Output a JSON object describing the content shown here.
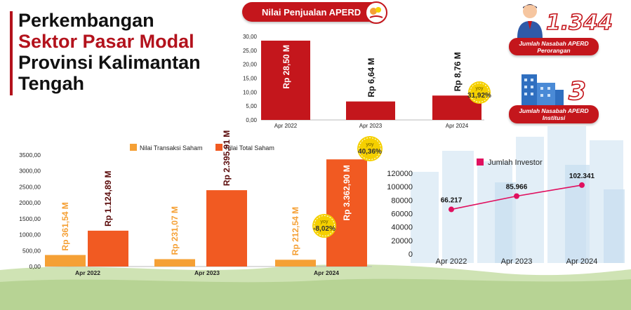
{
  "title": {
    "line1": "Perkembangan",
    "line2": "Sektor Pasar Modal",
    "line3": "Provinsi Kalimantan",
    "line4": "Tengah"
  },
  "aperd_header": "Nilai Penjualan APERD",
  "customers": {
    "individual": {
      "value": "1.344",
      "line1": "Jumlah Nasabah APERD",
      "line2": "Perorangan"
    },
    "institution": {
      "value": "3",
      "line1": "Jumlah Nasabah APERD",
      "line2": "Institusi"
    }
  },
  "colors": {
    "brand_red": "#c4161c",
    "bar_red": "#c4161c",
    "bar_orange_light": "#f5a035",
    "bar_orange": "#f15a22",
    "line_pink": "#e0105f",
    "yoy_badge": "#f5d000"
  },
  "chart_data": [
    {
      "type": "bar",
      "title": "Nilai Penjualan APERD",
      "categories": [
        "Apr 2022",
        "Apr 2023",
        "Apr 2024"
      ],
      "values": [
        28.5,
        6.64,
        8.76
      ],
      "value_labels": [
        "Rp 28,50 M",
        "Rp 6,64 M",
        "Rp 8,76 M"
      ],
      "ylim": [
        0,
        30
      ],
      "yticks": [
        "0,00",
        "5,00",
        "10,00",
        "15,00",
        "20,00",
        "25,00",
        "30,00"
      ],
      "ytick_values": [
        0,
        5,
        10,
        15,
        20,
        25,
        30
      ],
      "annotations": [
        {
          "category": "Apr 2024",
          "label": "yoy",
          "value": "31,92%"
        }
      ],
      "grid": false,
      "legend": "none"
    },
    {
      "type": "bar",
      "categories": [
        "Apr 2022",
        "Apr 2023",
        "Apr 2024"
      ],
      "series": [
        {
          "name": "Nilai Transaksi Saham",
          "values": [
            361.54,
            231.07,
            212.54
          ],
          "value_labels": [
            "Rp 361,54 M",
            "Rp 231,07 M",
            "Rp 212,54 M"
          ]
        },
        {
          "name": "Nilai Total Saham",
          "values": [
            1124.89,
            2395.91,
            3362.9
          ],
          "value_labels": [
            "Rp 1.124,89 M",
            "Rp 2.395,91 M",
            "Rp 3.362,90 M"
          ]
        }
      ],
      "ylim": [
        0,
        3500
      ],
      "yticks": [
        "0,00",
        "500,00",
        "1000,00",
        "1500,00",
        "2000,00",
        "2500,00",
        "3000,00",
        "3500,00"
      ],
      "ytick_values": [
        0,
        500,
        1000,
        1500,
        2000,
        2500,
        3000,
        3500
      ],
      "annotations": [
        {
          "series": "Nilai Transaksi Saham",
          "category": "Apr 2024",
          "label": "yoy",
          "value": "-8,02%"
        },
        {
          "series": "Nilai Total Saham",
          "category": "Apr 2024",
          "label": "yoy",
          "value": "40,36%"
        }
      ],
      "grid": false,
      "legend": "top"
    },
    {
      "type": "line",
      "categories": [
        "Apr 2022",
        "Apr 2023",
        "Apr 2024"
      ],
      "series": [
        {
          "name": "Jumlah Investor",
          "values": [
            66217,
            85966,
            102341
          ],
          "value_labels": [
            "66.217",
            "85.966",
            "102.341"
          ]
        }
      ],
      "ylim": [
        0,
        120000
      ],
      "yticks": [
        "0",
        "20000",
        "40000",
        "60000",
        "80000",
        "100000",
        "120000"
      ],
      "ytick_values": [
        0,
        20000,
        40000,
        60000,
        80000,
        100000,
        120000
      ],
      "grid": false,
      "legend": "top"
    }
  ]
}
